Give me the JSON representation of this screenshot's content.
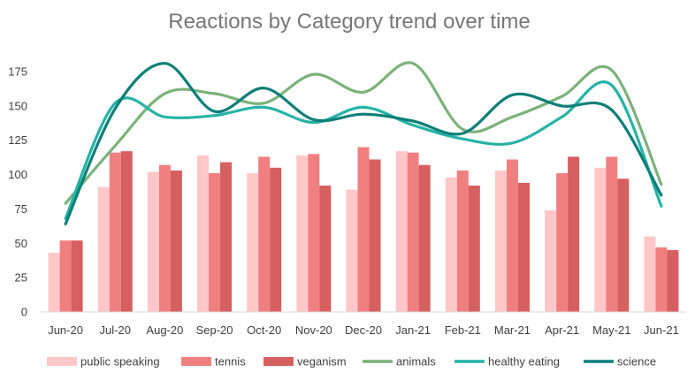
{
  "chart_data": {
    "type": "bar+line",
    "title": "Reactions by Category trend over time",
    "categories": [
      "Jun-20",
      "Jul-20",
      "Aug-20",
      "Sep-20",
      "Oct-20",
      "Nov-20",
      "Dec-20",
      "Jan-21",
      "Feb-21",
      "Mar-21",
      "Apr-21",
      "May-21",
      "Jun-21"
    ],
    "ylim": [
      0,
      175
    ],
    "yticks": [
      0,
      25,
      50,
      75,
      100,
      125,
      150,
      175
    ],
    "grid": false,
    "legend_position": "bottom",
    "bar_series": [
      {
        "name": "public speaking",
        "color": "#FFC7C7",
        "values": [
          43,
          91,
          102,
          114,
          101,
          114,
          89,
          117,
          98,
          103,
          74,
          105,
          55
        ]
      },
      {
        "name": "tennis",
        "color": "#F08080",
        "values": [
          52,
          116,
          107,
          101,
          113,
          115,
          120,
          116,
          103,
          111,
          101,
          113,
          47
        ]
      },
      {
        "name": "veganism",
        "color": "#D65F5F",
        "values": [
          52,
          117,
          103,
          109,
          105,
          92,
          111,
          107,
          92,
          94,
          113,
          97,
          45
        ]
      }
    ],
    "line_series": [
      {
        "name": "animals",
        "color": "#7BB27A",
        "values": [
          79,
          121,
          159,
          159,
          152,
          173,
          160,
          181,
          133,
          142,
          157,
          176,
          93
        ]
      },
      {
        "name": "healthy eating",
        "color": "#26B3A6",
        "values": [
          68,
          152,
          142,
          143,
          149,
          138,
          149,
          136,
          126,
          123,
          142,
          165,
          77
        ]
      },
      {
        "name": "science",
        "color": "#0B7F78",
        "values": [
          64,
          148,
          181,
          146,
          163,
          140,
          144,
          139,
          130,
          158,
          150,
          147,
          85
        ]
      }
    ]
  }
}
